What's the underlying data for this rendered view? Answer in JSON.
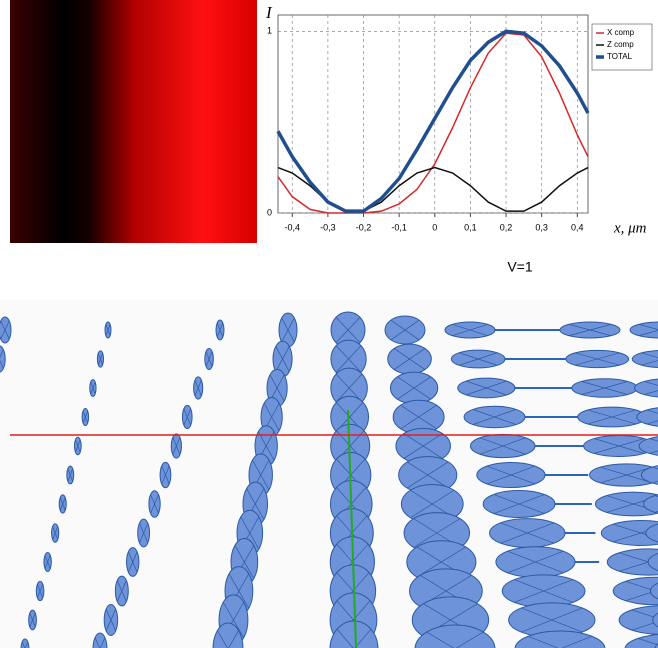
{
  "chart_data": {
    "type": "line",
    "y_label": "I",
    "x_label": "x, μm",
    "x": [
      -0.44,
      -0.4,
      -0.35,
      -0.3,
      -0.25,
      -0.2,
      -0.15,
      -0.1,
      -0.05,
      0,
      0.05,
      0.1,
      0.15,
      0.2,
      0.25,
      0.3,
      0.35,
      0.4,
      0.43
    ],
    "series": [
      {
        "name": "X comp",
        "color": "#d42a2a",
        "values": [
          0.2,
          0.09,
          0.02,
          0.0,
          0.0,
          0.0,
          0.01,
          0.05,
          0.13,
          0.27,
          0.47,
          0.69,
          0.88,
          0.99,
          0.98,
          0.86,
          0.66,
          0.43,
          0.31
        ]
      },
      {
        "name": "Z comp",
        "color": "#111111",
        "values": [
          0.25,
          0.22,
          0.15,
          0.06,
          0.01,
          0.01,
          0.06,
          0.15,
          0.22,
          0.25,
          0.22,
          0.15,
          0.06,
          0.01,
          0.01,
          0.06,
          0.15,
          0.22,
          0.25
        ]
      },
      {
        "name": "TOTAL",
        "color": "#1f4f8f",
        "values": [
          0.45,
          0.31,
          0.17,
          0.06,
          0.01,
          0.01,
          0.08,
          0.19,
          0.35,
          0.52,
          0.69,
          0.84,
          0.94,
          1.0,
          0.99,
          0.92,
          0.81,
          0.66,
          0.55
        ]
      }
    ],
    "xlim": [
      -0.44,
      0.43
    ],
    "ylim": [
      0,
      1.09
    ],
    "xticks": [
      {
        "value": -0.4,
        "label": "-0,4"
      },
      {
        "value": -0.3,
        "label": "-0,3"
      },
      {
        "value": -0.2,
        "label": "-0,2"
      },
      {
        "value": -0.1,
        "label": "-0,1"
      },
      0,
      {
        "value": 0.1,
        "label": "0,1"
      },
      {
        "value": 0.2,
        "label": "0,2"
      },
      {
        "value": 0.3,
        "label": "0,3"
      },
      {
        "value": 0.4,
        "label": "0,4"
      }
    ],
    "yticks": [
      0,
      1
    ],
    "grid": true,
    "legend": "upper right"
  },
  "annotation": "V=1"
}
